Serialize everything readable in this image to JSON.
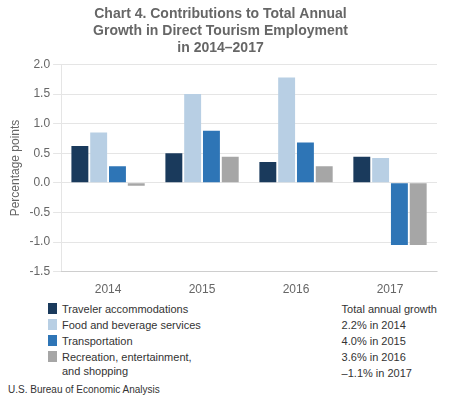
{
  "chart_data": {
    "type": "bar",
    "title": "Chart 4. Contributions to Total Annual\nGrowth in Direct Tourism Employment\nin 2014–2017",
    "ylabel": "Percentage points",
    "categories": [
      "2014",
      "2015",
      "2016",
      "2017"
    ],
    "series": [
      {
        "name": "Traveler accommodations",
        "color": "#1a3a5c",
        "values": [
          0.62,
          0.5,
          0.35,
          0.44
        ]
      },
      {
        "name": "Food and beverage services",
        "color": "#b8cfe4",
        "values": [
          0.85,
          1.5,
          1.78,
          0.42
        ]
      },
      {
        "name": "Transportation",
        "color": "#2e75b6",
        "values": [
          0.28,
          0.88,
          0.68,
          -1.05
        ]
      },
      {
        "name": "Recreation, entertainment,\nand shopping",
        "color": "#a6a6a6",
        "values": [
          -0.05,
          0.44,
          0.28,
          -1.05
        ]
      }
    ],
    "ylim": [
      -1.5,
      2.0
    ],
    "yticks": [
      -1.5,
      {
        "value": -1.0,
        "label": "-1.0"
      },
      -0.5,
      {
        "value": 0.0,
        "label": "0.0"
      },
      0.5,
      {
        "value": 1.0,
        "label": "1.0"
      },
      1.5,
      {
        "value": 2.0,
        "label": "2.0"
      }
    ],
    "grid": true,
    "legend": "bottom",
    "notes_title": "Total annual growth",
    "notes": [
      "2.2% in 2014",
      "4.0% in 2015",
      "3.6% in 2016",
      "–1.1% in 2017"
    ],
    "source": "U.S. Bureau of Economic Analysis"
  }
}
